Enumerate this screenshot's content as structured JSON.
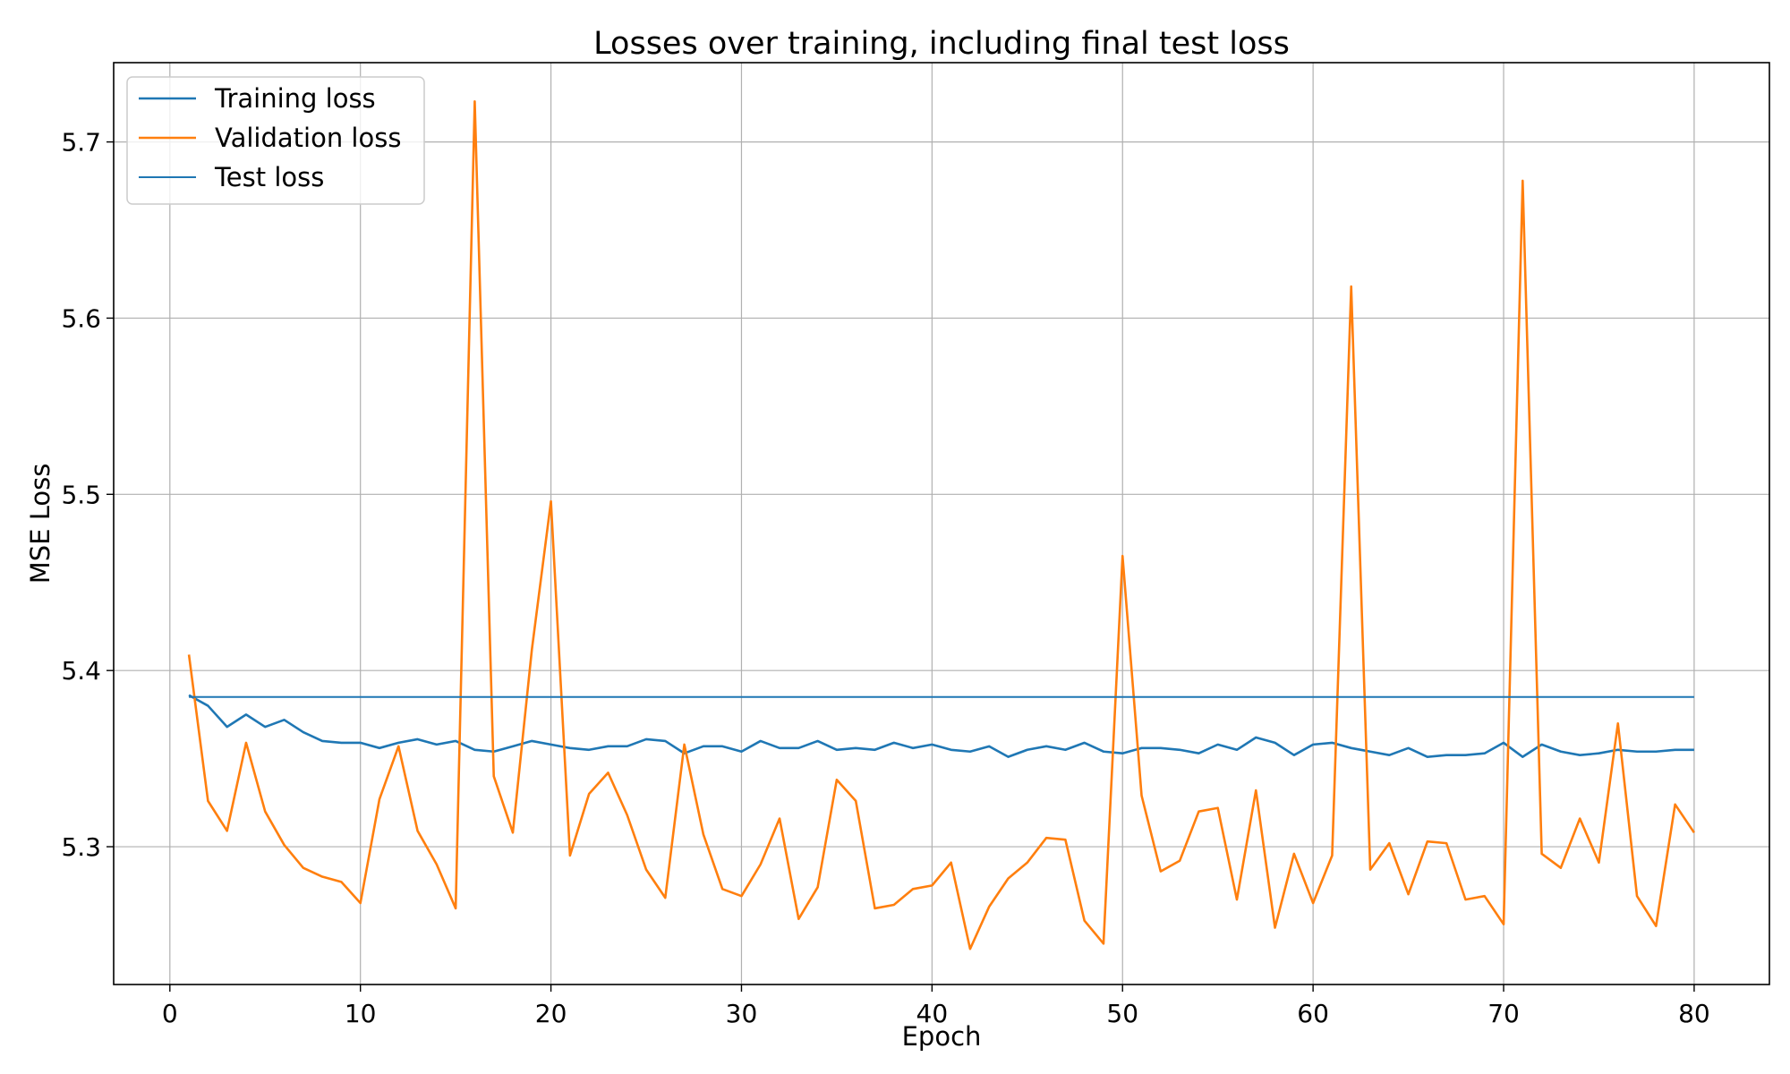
{
  "chart_data": {
    "type": "line",
    "title": "Losses over training, including final test loss",
    "xlabel": "Epoch",
    "ylabel": "MSE Loss",
    "xlim": [
      -2.95,
      83.95
    ],
    "ylim": [
      5.2218,
      5.745
    ],
    "xticks": [
      0,
      10,
      20,
      30,
      40,
      50,
      60,
      70,
      80
    ],
    "yticks": [
      5.3,
      5.4,
      5.5,
      5.6,
      5.7
    ],
    "ytick_labels": [
      "5.3",
      "5.4",
      "5.5",
      "5.6",
      "5.7"
    ],
    "grid": true,
    "legend_position": "top-left",
    "x": [
      1,
      2,
      3,
      4,
      5,
      6,
      7,
      8,
      9,
      10,
      11,
      12,
      13,
      14,
      15,
      16,
      17,
      18,
      19,
      20,
      21,
      22,
      23,
      24,
      25,
      26,
      27,
      28,
      29,
      30,
      31,
      32,
      33,
      34,
      35,
      36,
      37,
      38,
      39,
      40,
      41,
      42,
      43,
      44,
      45,
      46,
      47,
      48,
      49,
      50,
      51,
      52,
      53,
      54,
      55,
      56,
      57,
      58,
      59,
      60,
      61,
      62,
      63,
      64,
      65,
      66,
      67,
      68,
      69,
      70,
      71,
      72,
      73,
      74,
      75,
      76,
      77,
      78,
      79,
      80
    ],
    "series": [
      {
        "name": "Training loss",
        "color": "#1f77b4",
        "values": [
          5.386,
          5.38,
          5.368,
          5.375,
          5.368,
          5.372,
          5.365,
          5.36,
          5.359,
          5.359,
          5.356,
          5.359,
          5.361,
          5.358,
          5.36,
          5.355,
          5.354,
          5.357,
          5.36,
          5.358,
          5.356,
          5.355,
          5.357,
          5.357,
          5.361,
          5.36,
          5.353,
          5.357,
          5.357,
          5.354,
          5.36,
          5.356,
          5.356,
          5.36,
          5.355,
          5.356,
          5.355,
          5.359,
          5.356,
          5.358,
          5.355,
          5.354,
          5.357,
          5.351,
          5.355,
          5.357,
          5.355,
          5.359,
          5.354,
          5.353,
          5.356,
          5.356,
          5.355,
          5.353,
          5.358,
          5.355,
          5.362,
          5.359,
          5.352,
          5.358,
          5.359,
          5.356,
          5.354,
          5.352,
          5.356,
          5.351,
          5.352,
          5.352,
          5.353,
          5.359,
          5.351,
          5.358,
          5.354,
          5.352,
          5.353,
          5.355,
          5.354,
          5.354,
          5.355,
          5.355
        ]
      },
      {
        "name": "Validation loss",
        "color": "#ff7f0e",
        "values": [
          5.409,
          5.326,
          5.309,
          5.359,
          5.32,
          5.301,
          5.288,
          5.283,
          5.28,
          5.268,
          5.327,
          5.357,
          5.309,
          5.29,
          5.265,
          5.723,
          5.34,
          5.308,
          5.412,
          5.496,
          5.295,
          5.33,
          5.342,
          5.318,
          5.287,
          5.271,
          5.358,
          5.307,
          5.276,
          5.272,
          5.29,
          5.316,
          5.259,
          5.277,
          5.338,
          5.326,
          5.265,
          5.267,
          5.276,
          5.278,
          5.291,
          5.242,
          5.266,
          5.282,
          5.291,
          5.305,
          5.304,
          5.258,
          5.245,
          5.465,
          5.329,
          5.286,
          5.292,
          5.32,
          5.322,
          5.27,
          5.332,
          5.254,
          5.296,
          5.268,
          5.295,
          5.618,
          5.287,
          5.302,
          5.273,
          5.303,
          5.302,
          5.27,
          5.272,
          5.256,
          5.678,
          5.296,
          5.288,
          5.316,
          5.291,
          5.37,
          5.272,
          5.255,
          5.324,
          5.308
        ]
      },
      {
        "name": "Test loss",
        "color": "#1f77b4",
        "x": [
          1,
          80
        ],
        "values": [
          5.385,
          5.385
        ]
      }
    ]
  }
}
